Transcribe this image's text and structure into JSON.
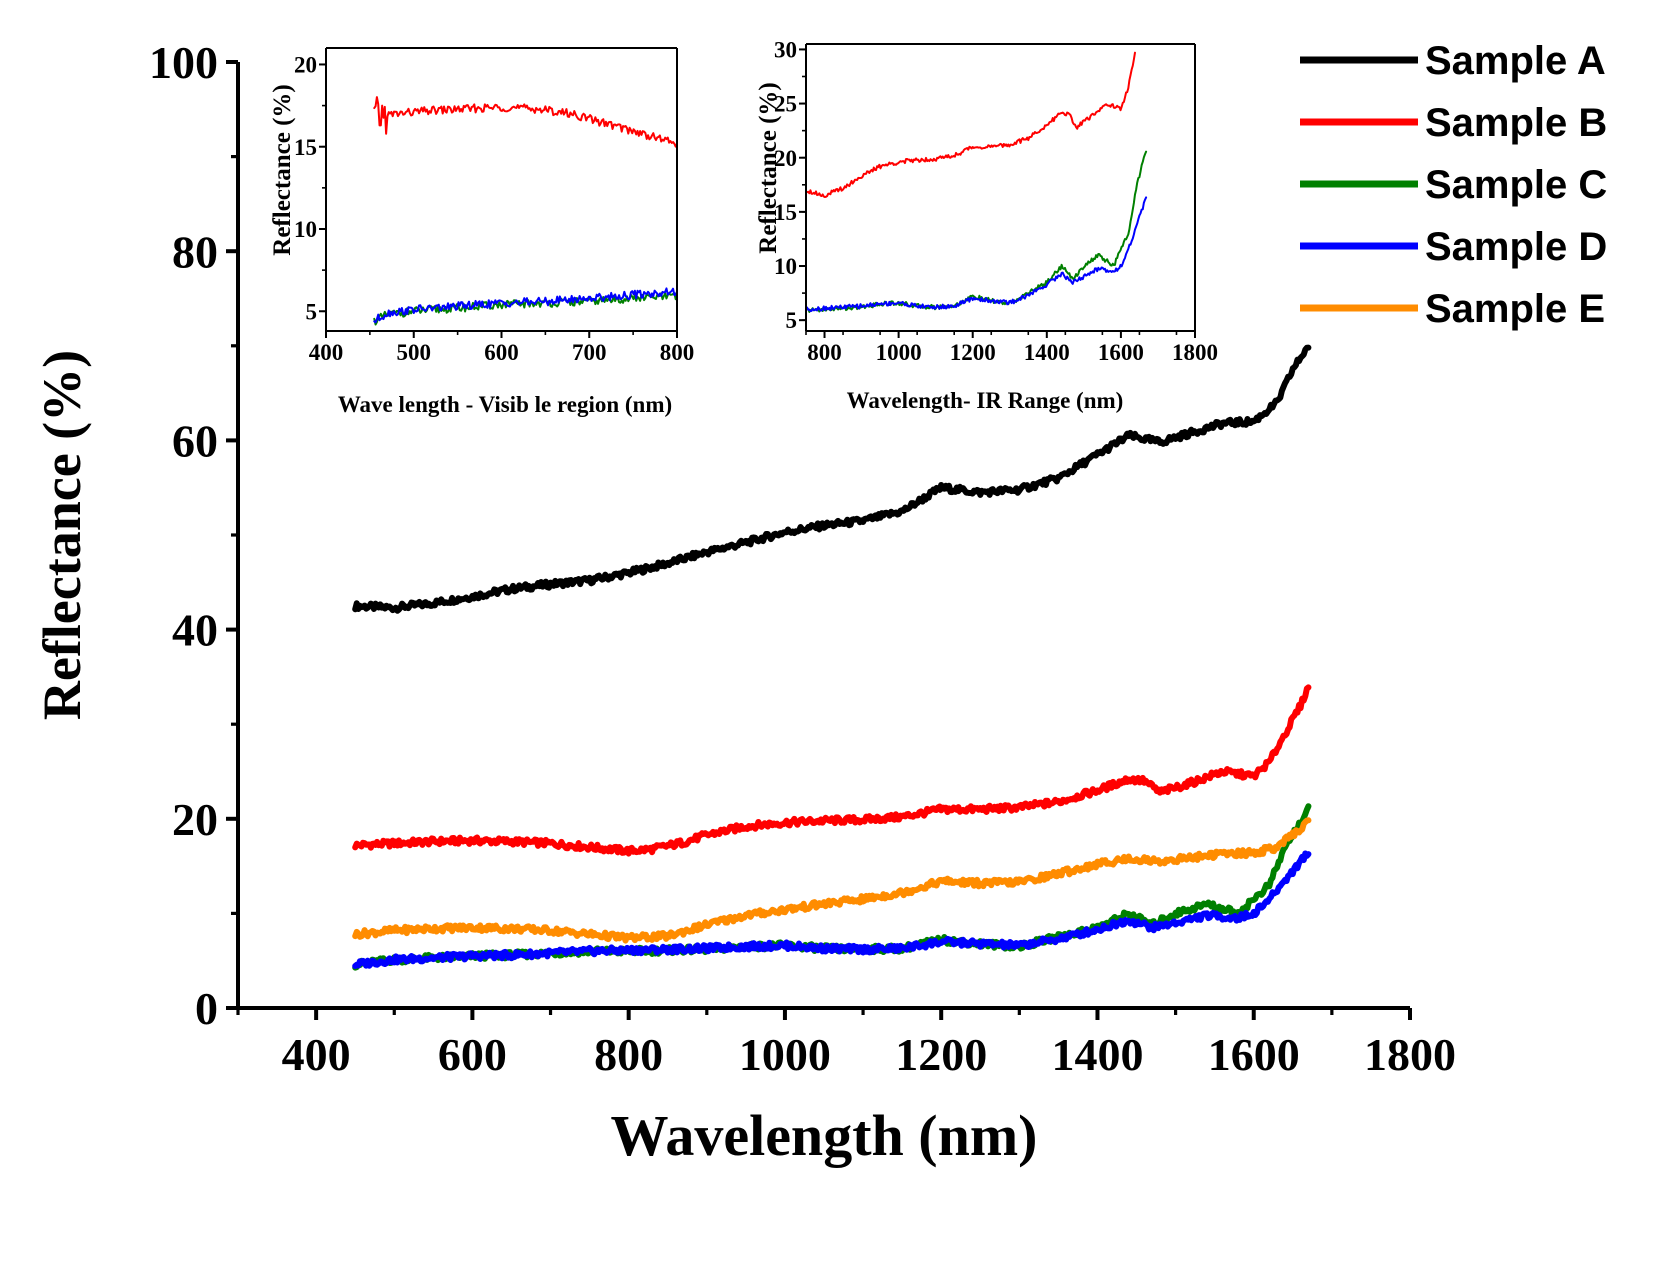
{
  "chart_data": [
    {
      "type": "line",
      "role": "main",
      "xlabel": "Wavelength (nm)",
      "ylabel": "Reflectance (%)",
      "xlim": [
        300,
        1800
      ],
      "ylim": [
        0,
        100
      ],
      "xticks": [
        400,
        600,
        800,
        1000,
        1200,
        1400,
        1600,
        1800
      ],
      "yticks": [
        0,
        20,
        40,
        60,
        80,
        100
      ],
      "legend": "top-right",
      "grid": false,
      "series": [
        {
          "name": "Sample A",
          "color": "#000000",
          "x": [
            450,
            500,
            550,
            600,
            650,
            700,
            750,
            800,
            850,
            900,
            950,
            1000,
            1050,
            1100,
            1150,
            1200,
            1250,
            1300,
            1350,
            1400,
            1440,
            1480,
            1520,
            1560,
            1600,
            1630,
            1650,
            1670
          ],
          "y": [
            42.5,
            42.3,
            42.8,
            43.5,
            44.3,
            44.8,
            45.2,
            46.0,
            47.0,
            48.2,
            49.2,
            50.3,
            51.0,
            51.5,
            52.5,
            55.0,
            54.5,
            54.8,
            56.0,
            58.5,
            60.5,
            59.8,
            60.8,
            61.8,
            62.0,
            64.0,
            67.5,
            70.0
          ]
        },
        {
          "name": "Sample B",
          "color": "#ff0000",
          "x": [
            450,
            500,
            550,
            600,
            650,
            700,
            750,
            800,
            830,
            870,
            900,
            950,
            1000,
            1050,
            1100,
            1150,
            1200,
            1250,
            1300,
            1350,
            1400,
            1440,
            1460,
            1480,
            1520,
            1560,
            1600,
            1620,
            1640,
            1660,
            1670
          ],
          "y": [
            17.2,
            17.4,
            17.6,
            17.7,
            17.6,
            17.4,
            17.0,
            16.6,
            16.8,
            17.5,
            18.3,
            19.2,
            19.6,
            19.8,
            19.9,
            20.2,
            21.0,
            21.0,
            21.2,
            21.8,
            23.0,
            24.2,
            24.0,
            22.8,
            23.8,
            25.0,
            24.5,
            26.0,
            29.0,
            32.0,
            34.0
          ]
        },
        {
          "name": "Sample C",
          "color": "#008000",
          "x": [
            450,
            500,
            550,
            600,
            650,
            700,
            750,
            800,
            850,
            900,
            950,
            1000,
            1050,
            1100,
            1150,
            1200,
            1250,
            1300,
            1350,
            1400,
            1440,
            1470,
            1500,
            1540,
            1580,
            1600,
            1620,
            1640,
            1655,
            1670
          ],
          "y": [
            4.6,
            5.1,
            5.3,
            5.5,
            5.6,
            5.8,
            6.0,
            6.0,
            6.1,
            6.2,
            6.5,
            6.6,
            6.3,
            6.2,
            6.3,
            7.2,
            6.8,
            6.5,
            7.5,
            8.5,
            10.0,
            8.8,
            10.0,
            11.0,
            10.0,
            11.5,
            13.0,
            17.0,
            19.0,
            21.0
          ]
        },
        {
          "name": "Sample D",
          "color": "#0000ff",
          "x": [
            450,
            500,
            550,
            600,
            650,
            700,
            750,
            800,
            850,
            900,
            950,
            1000,
            1050,
            1100,
            1150,
            1200,
            1250,
            1300,
            1350,
            1400,
            1440,
            1470,
            1500,
            1540,
            1580,
            1600,
            1620,
            1640,
            1655,
            1670
          ],
          "y": [
            4.6,
            5.1,
            5.3,
            5.5,
            5.6,
            5.8,
            6.0,
            6.1,
            6.2,
            6.3,
            6.5,
            6.6,
            6.3,
            6.2,
            6.3,
            7.0,
            6.8,
            6.6,
            7.3,
            8.3,
            9.3,
            8.5,
            9.0,
            9.8,
            9.5,
            10.0,
            11.5,
            13.5,
            15.0,
            16.5
          ]
        },
        {
          "name": "Sample E",
          "color": "#ff8c00",
          "x": [
            450,
            500,
            550,
            600,
            650,
            700,
            750,
            800,
            850,
            900,
            950,
            1000,
            1050,
            1100,
            1150,
            1200,
            1250,
            1300,
            1350,
            1400,
            1440,
            1480,
            1520,
            1560,
            1600,
            1630,
            1650,
            1670
          ],
          "y": [
            7.8,
            8.2,
            8.4,
            8.5,
            8.4,
            8.2,
            7.8,
            7.4,
            7.6,
            8.8,
            9.8,
            10.4,
            11.0,
            11.5,
            12.2,
            13.4,
            13.2,
            13.3,
            14.2,
            15.2,
            15.8,
            15.5,
            15.9,
            16.3,
            16.4,
            17.0,
            18.3,
            19.7
          ]
        }
      ]
    },
    {
      "type": "line",
      "role": "inset-visible",
      "xlabel": "Wave length - Visib le region (nm)",
      "ylabel": "Reflectance (%)",
      "xlim": [
        400,
        800
      ],
      "ylim": [
        3.8,
        21
      ],
      "xticks": [
        400,
        500,
        600,
        700,
        800
      ],
      "yticks": [
        5,
        10,
        15,
        20
      ],
      "series": [
        {
          "color": "#ff0000",
          "x": [
            455,
            480,
            520,
            560,
            600,
            640,
            680,
            720,
            760,
            800
          ],
          "y": [
            16.8,
            17.0,
            17.2,
            17.3,
            17.4,
            17.3,
            17.0,
            16.4,
            15.8,
            15.2
          ]
        },
        {
          "color": "#008000",
          "x": [
            455,
            470,
            500,
            550,
            600,
            650,
            700,
            750,
            800
          ],
          "y": [
            4.4,
            4.8,
            5.0,
            5.2,
            5.4,
            5.5,
            5.6,
            5.8,
            5.9
          ]
        },
        {
          "color": "#0000ff",
          "x": [
            455,
            470,
            500,
            550,
            600,
            650,
            700,
            750,
            800
          ],
          "y": [
            4.4,
            4.9,
            5.1,
            5.3,
            5.5,
            5.6,
            5.8,
            6.0,
            6.2
          ]
        }
      ]
    },
    {
      "type": "line",
      "role": "inset-ir",
      "xlabel": "Wavelength- IR Range (nm)",
      "ylabel": "Reflectance (%)",
      "xlim": [
        750,
        1800
      ],
      "ylim": [
        4,
        30.5
      ],
      "xticks": [
        800,
        1000,
        1200,
        1400,
        1600,
        1800
      ],
      "yticks": [
        5,
        10,
        15,
        20,
        25,
        30
      ],
      "series": [
        {
          "color": "#ff0000",
          "x": [
            750,
            800,
            850,
            900,
            950,
            1000,
            1050,
            1100,
            1150,
            1200,
            1250,
            1300,
            1350,
            1400,
            1440,
            1460,
            1480,
            1520,
            1560,
            1600,
            1620,
            1640
          ],
          "y": [
            17.0,
            16.5,
            17.2,
            18.3,
            19.2,
            19.6,
            19.8,
            19.9,
            20.2,
            21.0,
            21.0,
            21.2,
            21.8,
            23.0,
            24.2,
            24.0,
            22.8,
            23.8,
            25.0,
            24.5,
            26.5,
            30.0
          ]
        },
        {
          "color": "#008000",
          "x": [
            750,
            800,
            850,
            900,
            950,
            1000,
            1050,
            1100,
            1150,
            1200,
            1250,
            1300,
            1350,
            1400,
            1440,
            1470,
            1500,
            1540,
            1580,
            1600,
            1620,
            1640,
            1655,
            1670
          ],
          "y": [
            5.9,
            6.0,
            6.1,
            6.2,
            6.5,
            6.6,
            6.3,
            6.2,
            6.3,
            7.2,
            6.8,
            6.5,
            7.5,
            8.5,
            10.0,
            8.8,
            10.0,
            11.0,
            10.0,
            11.5,
            13.0,
            17.0,
            19.0,
            21.0
          ]
        },
        {
          "color": "#0000ff",
          "x": [
            750,
            800,
            850,
            900,
            950,
            1000,
            1050,
            1100,
            1150,
            1200,
            1250,
            1300,
            1350,
            1400,
            1440,
            1470,
            1500,
            1540,
            1580,
            1600,
            1620,
            1640,
            1655,
            1670
          ],
          "y": [
            6.0,
            6.1,
            6.2,
            6.3,
            6.5,
            6.6,
            6.3,
            6.2,
            6.3,
            7.0,
            6.8,
            6.6,
            7.3,
            8.3,
            9.3,
            8.5,
            9.0,
            9.8,
            9.5,
            10.0,
            11.5,
            13.5,
            15.0,
            16.5
          ]
        }
      ]
    }
  ]
}
